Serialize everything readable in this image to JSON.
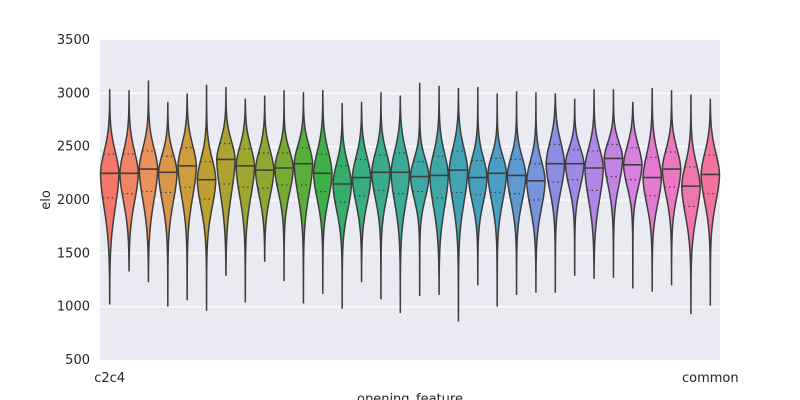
{
  "chart_data": {
    "type": "violin",
    "title": "",
    "xlabel": "opening_feature",
    "ylabel": "elo",
    "ylim": [
      500,
      3500
    ],
    "yticks": [
      500,
      1000,
      1500,
      2000,
      2500,
      3000,
      3500
    ],
    "grid": true,
    "background": "#eaeaf2",
    "inner": "quartile",
    "first_category_label": "c2c4",
    "last_category_label": "common",
    "categories": [
      {
        "min": 1020,
        "max": 3040,
        "q1": 2020,
        "median": 2250,
        "q3": 2430,
        "color": "#f3776a"
      },
      {
        "min": 1330,
        "max": 3030,
        "q1": 2060,
        "median": 2250,
        "q3": 2430,
        "color": "#ef8565"
      },
      {
        "min": 1230,
        "max": 3120,
        "q1": 2080,
        "median": 2290,
        "q3": 2460,
        "color": "#e9905c"
      },
      {
        "min": 1000,
        "max": 2920,
        "q1": 2070,
        "median": 2260,
        "q3": 2410,
        "color": "#da9749"
      },
      {
        "min": 1060,
        "max": 3000,
        "q1": 2120,
        "median": 2320,
        "q3": 2490,
        "color": "#cc9c3d"
      },
      {
        "min": 960,
        "max": 3080,
        "q1": 2010,
        "median": 2190,
        "q3": 2360,
        "color": "#be9f32"
      },
      {
        "min": 1290,
        "max": 3060,
        "q1": 2150,
        "median": 2380,
        "q3": 2530,
        "color": "#aca332"
      },
      {
        "min": 1040,
        "max": 2950,
        "q1": 2120,
        "median": 2320,
        "q3": 2480,
        "color": "#9ea630"
      },
      {
        "min": 1420,
        "max": 2980,
        "q1": 2110,
        "median": 2280,
        "q3": 2440,
        "color": "#8fa832"
      },
      {
        "min": 1240,
        "max": 3030,
        "q1": 2140,
        "median": 2300,
        "q3": 2440,
        "color": "#78ab34"
      },
      {
        "min": 1030,
        "max": 3010,
        "q1": 2140,
        "median": 2340,
        "q3": 2490,
        "color": "#5aaf3c"
      },
      {
        "min": 1120,
        "max": 3030,
        "q1": 2080,
        "median": 2250,
        "q3": 2430,
        "color": "#3fb048"
      },
      {
        "min": 980,
        "max": 2910,
        "q1": 1980,
        "median": 2150,
        "q3": 2320,
        "color": "#35ae6a"
      },
      {
        "min": 1230,
        "max": 2920,
        "q1": 2040,
        "median": 2210,
        "q3": 2380,
        "color": "#38ad7f"
      },
      {
        "min": 1070,
        "max": 3010,
        "q1": 2090,
        "median": 2260,
        "q3": 2420,
        "color": "#3aab8d"
      },
      {
        "min": 940,
        "max": 2980,
        "q1": 2060,
        "median": 2260,
        "q3": 2440,
        "color": "#3caa98"
      },
      {
        "min": 1100,
        "max": 3100,
        "q1": 2080,
        "median": 2220,
        "q3": 2360,
        "color": "#3ea8a2"
      },
      {
        "min": 1110,
        "max": 3070,
        "q1": 2020,
        "median": 2230,
        "q3": 2410,
        "color": "#3fa6aa"
      },
      {
        "min": 860,
        "max": 3050,
        "q1": 2070,
        "median": 2280,
        "q3": 2460,
        "color": "#41a4b2"
      },
      {
        "min": 1200,
        "max": 3060,
        "q1": 2050,
        "median": 2210,
        "q3": 2370,
        "color": "#43a1bb"
      },
      {
        "min": 1000,
        "max": 3000,
        "q1": 2070,
        "median": 2250,
        "q3": 2390,
        "color": "#4a9fc6"
      },
      {
        "min": 1110,
        "max": 3020,
        "q1": 2060,
        "median": 2230,
        "q3": 2380,
        "color": "#5c9ad0"
      },
      {
        "min": 1130,
        "max": 3010,
        "q1": 2000,
        "median": 2180,
        "q3": 2340,
        "color": "#7495db"
      },
      {
        "min": 1130,
        "max": 3000,
        "q1": 2170,
        "median": 2340,
        "q3": 2520,
        "color": "#8a8fe2"
      },
      {
        "min": 1290,
        "max": 2950,
        "q1": 2190,
        "median": 2340,
        "q3": 2470,
        "color": "#9d8ae6"
      },
      {
        "min": 1260,
        "max": 3040,
        "q1": 2090,
        "median": 2300,
        "q3": 2460,
        "color": "#b087e6"
      },
      {
        "min": 1270,
        "max": 3040,
        "q1": 2220,
        "median": 2390,
        "q3": 2520,
        "color": "#c284e3"
      },
      {
        "min": 1170,
        "max": 2920,
        "q1": 2190,
        "median": 2330,
        "q3": 2490,
        "color": "#d780de"
      },
      {
        "min": 1140,
        "max": 3050,
        "q1": 2040,
        "median": 2210,
        "q3": 2400,
        "color": "#e27bcf"
      },
      {
        "min": 1200,
        "max": 3030,
        "q1": 2120,
        "median": 2290,
        "q3": 2450,
        "color": "#ea78be"
      },
      {
        "min": 930,
        "max": 2990,
        "q1": 1940,
        "median": 2130,
        "q3": 2310,
        "color": "#ee76ae"
      },
      {
        "min": 1010,
        "max": 2950,
        "q1": 2060,
        "median": 2240,
        "q3": 2420,
        "color": "#f2749e"
      }
    ]
  }
}
